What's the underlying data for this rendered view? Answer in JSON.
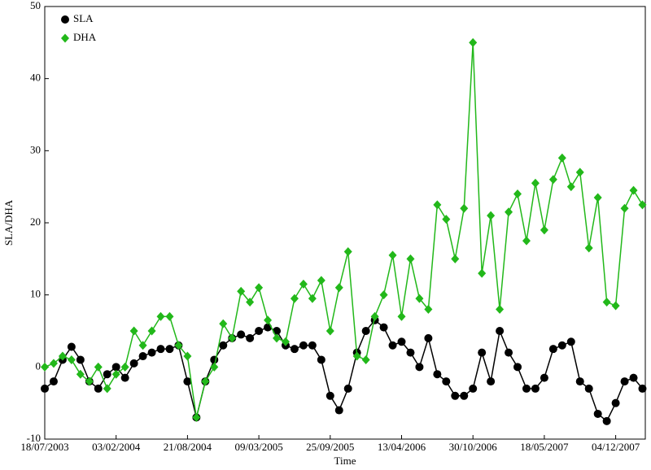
{
  "chart_data": {
    "type": "line",
    "xlabel": "Time",
    "ylabel": "SLA/DHA",
    "x": [
      "2003-07-18",
      "2003-08-12",
      "2003-09-06",
      "2003-10-01",
      "2003-10-26",
      "2003-11-20",
      "2003-12-15",
      "2004-01-09",
      "2004-02-03",
      "2004-02-28",
      "2004-03-24",
      "2004-04-18",
      "2004-05-13",
      "2004-06-07",
      "2004-07-02",
      "2004-07-27",
      "2004-08-21",
      "2004-09-15",
      "2004-10-10",
      "2004-11-04",
      "2004-11-29",
      "2004-12-24",
      "2005-01-18",
      "2005-02-12",
      "2005-03-09",
      "2005-04-03",
      "2005-04-28",
      "2005-05-23",
      "2005-06-17",
      "2005-07-12",
      "2005-08-06",
      "2005-08-31",
      "2005-09-25",
      "2005-10-20",
      "2005-11-14",
      "2005-12-09",
      "2006-01-03",
      "2006-01-28",
      "2006-02-22",
      "2006-03-19",
      "2006-04-13",
      "2006-05-08",
      "2006-06-02",
      "2006-06-27",
      "2006-07-22",
      "2006-08-16",
      "2006-09-10",
      "2006-10-05",
      "2006-10-30",
      "2006-11-24",
      "2006-12-19",
      "2007-01-13",
      "2007-02-07",
      "2007-03-04",
      "2007-03-29",
      "2007-04-23",
      "2007-05-18",
      "2007-06-12",
      "2007-07-07",
      "2007-08-01",
      "2007-08-26",
      "2007-09-20",
      "2007-10-15",
      "2007-11-09",
      "2007-12-04",
      "2007-12-29",
      "2008-01-23",
      "2008-02-17"
    ],
    "series": [
      {
        "name": "SLA",
        "color": "#000000",
        "marker": "circle",
        "values": [
          -3,
          -2,
          1,
          2.8,
          1,
          -2,
          -3,
          -1,
          0,
          -1.5,
          0.5,
          1.5,
          2,
          2.5,
          2.5,
          3,
          -2,
          -7,
          -2,
          1,
          3,
          4,
          4.5,
          4,
          5,
          5.5,
          5,
          3,
          2.5,
          3,
          3,
          1,
          -4,
          -6,
          -3,
          2,
          5,
          6.5,
          5.5,
          3,
          3.5,
          2,
          0,
          4,
          -1,
          -2,
          -4,
          -4,
          -3,
          2,
          -2,
          5,
          2,
          0,
          -3,
          -3,
          -1.5,
          2.5,
          3,
          3.5,
          -2,
          -3,
          -6.5,
          -7.5,
          -5,
          -2,
          -1.5,
          -3
        ]
      },
      {
        "name": "DHA",
        "color": "#22b81a",
        "marker": "diamond",
        "values": [
          0,
          0.5,
          1.5,
          1,
          -1,
          -2,
          0,
          -3,
          -1,
          0,
          5,
          3,
          5,
          7,
          7,
          3,
          1.5,
          -7,
          -2,
          0,
          6,
          4,
          10.5,
          9,
          11,
          6.5,
          4,
          3.5,
          9.5,
          11.5,
          9.5,
          12,
          5,
          11,
          16,
          1.5,
          1,
          7,
          10,
          15.5,
          7,
          15,
          9.5,
          8,
          22.5,
          20.5,
          15,
          22,
          45,
          13,
          21,
          8,
          21.5,
          24,
          17.5,
          25.5,
          19,
          26,
          29,
          25,
          27,
          16.5,
          23.5,
          9,
          8.5,
          22,
          24.5,
          22.5
        ]
      }
    ],
    "xlim": [
      "2003-07-18",
      "2008-02-25"
    ],
    "xticks": [
      {
        "value": "2003-07-18",
        "label": "18/07/2003"
      },
      {
        "value": "2004-02-03",
        "label": "03/02/2004"
      },
      {
        "value": "2004-08-21",
        "label": "21/08/2004"
      },
      {
        "value": "2005-03-09",
        "label": "09/03/2005"
      },
      {
        "value": "2005-09-25",
        "label": "25/09/2005"
      },
      {
        "value": "2006-04-13",
        "label": "13/04/2006"
      },
      {
        "value": "2006-10-30",
        "label": "30/10/2006"
      },
      {
        "value": "2007-05-18",
        "label": "18/05/2007"
      },
      {
        "value": "2007-12-04",
        "label": "04/12/2007"
      }
    ],
    "ylim": [
      -10,
      50
    ],
    "yticks": [
      -10,
      0,
      10,
      20,
      30,
      40,
      50
    ],
    "grid": false,
    "legend": "upper left"
  }
}
